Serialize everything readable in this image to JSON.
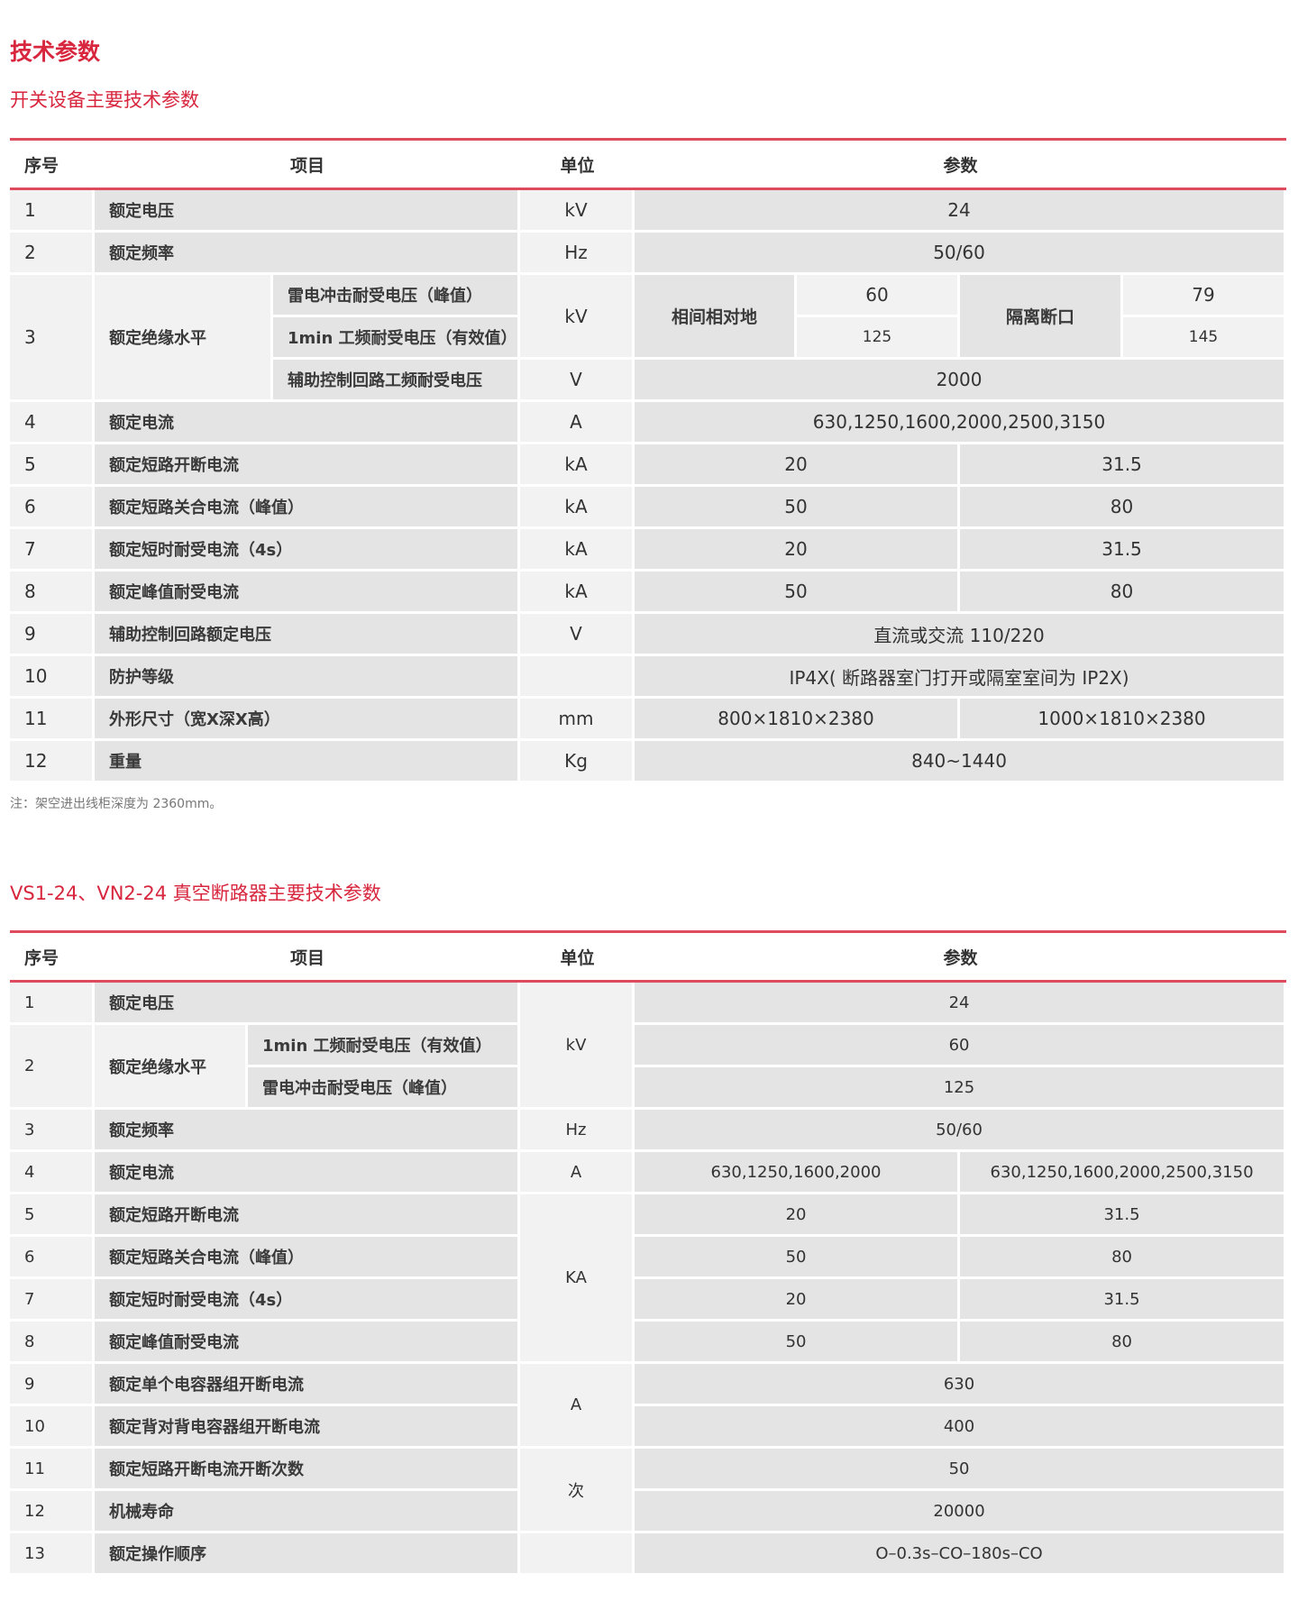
{
  "page_title": "技术参数",
  "t1": {
    "title": "开关设备主要技术参数",
    "headers": [
      "序号",
      "项目",
      "单位",
      "参数"
    ],
    "rows": [
      {
        "no": "1",
        "item": "额定电压",
        "unit": "kV",
        "value": "24"
      },
      {
        "no": "2",
        "item": "额定频率",
        "unit": "Hz",
        "value": "50/60"
      },
      {
        "no": "3",
        "item": "额定绝缘水平",
        "sub": [
          "雷电冲击耐受电压（峰值）",
          "1min 工频耐受电压（有效值）",
          "辅助控制回路工频耐受电压"
        ],
        "unit": "kV",
        "unit2": "V",
        "phase_label": "相间相对地",
        "phase_values": [
          "60",
          "125"
        ],
        "iso_label": "隔离断口",
        "iso_values": [
          "79",
          "145"
        ],
        "aux_value": "2000"
      },
      {
        "no": "4",
        "item": "额定电流",
        "unit": "A",
        "value": "630,1250,1600,2000,2500,3150"
      },
      {
        "no": "5",
        "item": "额定短路开断电流",
        "unit": "kA",
        "values": [
          "20",
          "31.5"
        ]
      },
      {
        "no": "6",
        "item": "额定短路关合电流（峰值）",
        "unit": "kA",
        "values": [
          "50",
          "80"
        ]
      },
      {
        "no": "7",
        "item": "额定短时耐受电流（4s）",
        "unit": "kA",
        "values": [
          "20",
          "31.5"
        ]
      },
      {
        "no": "8",
        "item": "额定峰值耐受电流",
        "unit": "kA",
        "values": [
          "50",
          "80"
        ]
      },
      {
        "no": "9",
        "item": "辅助控制回路额定电压",
        "unit": "V",
        "value": "直流或交流 110/220"
      },
      {
        "no": "10",
        "item": "防护等级",
        "unit": "",
        "value": "IP4X( 断路器室门打开或隔室室间为 IP2X)"
      },
      {
        "no": "11",
        "item": "外形尺寸（宽X深X高）",
        "unit": "mm",
        "values": [
          "800×1810×2380",
          "1000×1810×2380"
        ]
      },
      {
        "no": "12",
        "item": "重量",
        "unit": "Kg",
        "value": "840~1440"
      }
    ],
    "note": "注：架空进出线柜深度为 2360mm。"
  },
  "t2": {
    "title": "VS1-24、VN2-24 真空断路器主要技术参数",
    "headers": [
      "序号",
      "项目",
      "单位",
      "参数"
    ],
    "rows": [
      {
        "no": "1",
        "item": "额定电压",
        "unit": "kV",
        "value": "24"
      },
      {
        "no": "2",
        "item": "额定绝缘水平",
        "sub": [
          "1min 工频耐受电压（有效值）",
          "雷电冲击耐受电压（峰值）"
        ],
        "values": [
          "60",
          "125"
        ]
      },
      {
        "no": "3",
        "item": "额定频率",
        "unit": "Hz",
        "value": "50/60"
      },
      {
        "no": "4",
        "item": "额定电流",
        "unit": "A",
        "values": [
          "630,1250,1600,2000",
          "630,1250,1600,2000,2500,3150"
        ]
      },
      {
        "no": "5",
        "item": "额定短路开断电流",
        "unit": "KA",
        "values": [
          "20",
          "31.5"
        ]
      },
      {
        "no": "6",
        "item": "额定短路关合电流（峰值）",
        "values": [
          "50",
          "80"
        ]
      },
      {
        "no": "7",
        "item": "额定短时耐受电流（4s）",
        "values": [
          "20",
          "31.5"
        ]
      },
      {
        "no": "8",
        "item": "额定峰值耐受电流",
        "values": [
          "50",
          "80"
        ]
      },
      {
        "no": "9",
        "item": "额定单个电容器组开断电流",
        "unit": "A",
        "value": "630"
      },
      {
        "no": "10",
        "item": "额定背对背电容器组开断电流",
        "value": "400"
      },
      {
        "no": "11",
        "item": "额定短路开断电流开断次数",
        "unit": "次",
        "value": "50"
      },
      {
        "no": "12",
        "item": "机械寿命",
        "value": "20000"
      },
      {
        "no": "13",
        "item": "额定操作顺序",
        "unit": "",
        "value": "O–0.3s–CO–180s–CO"
      }
    ]
  },
  "colors": {
    "accent": "#d7263d",
    "rule": "#df4b5e",
    "cell_dark": "#e4e4e4",
    "cell_light": "#f2f2f2"
  }
}
